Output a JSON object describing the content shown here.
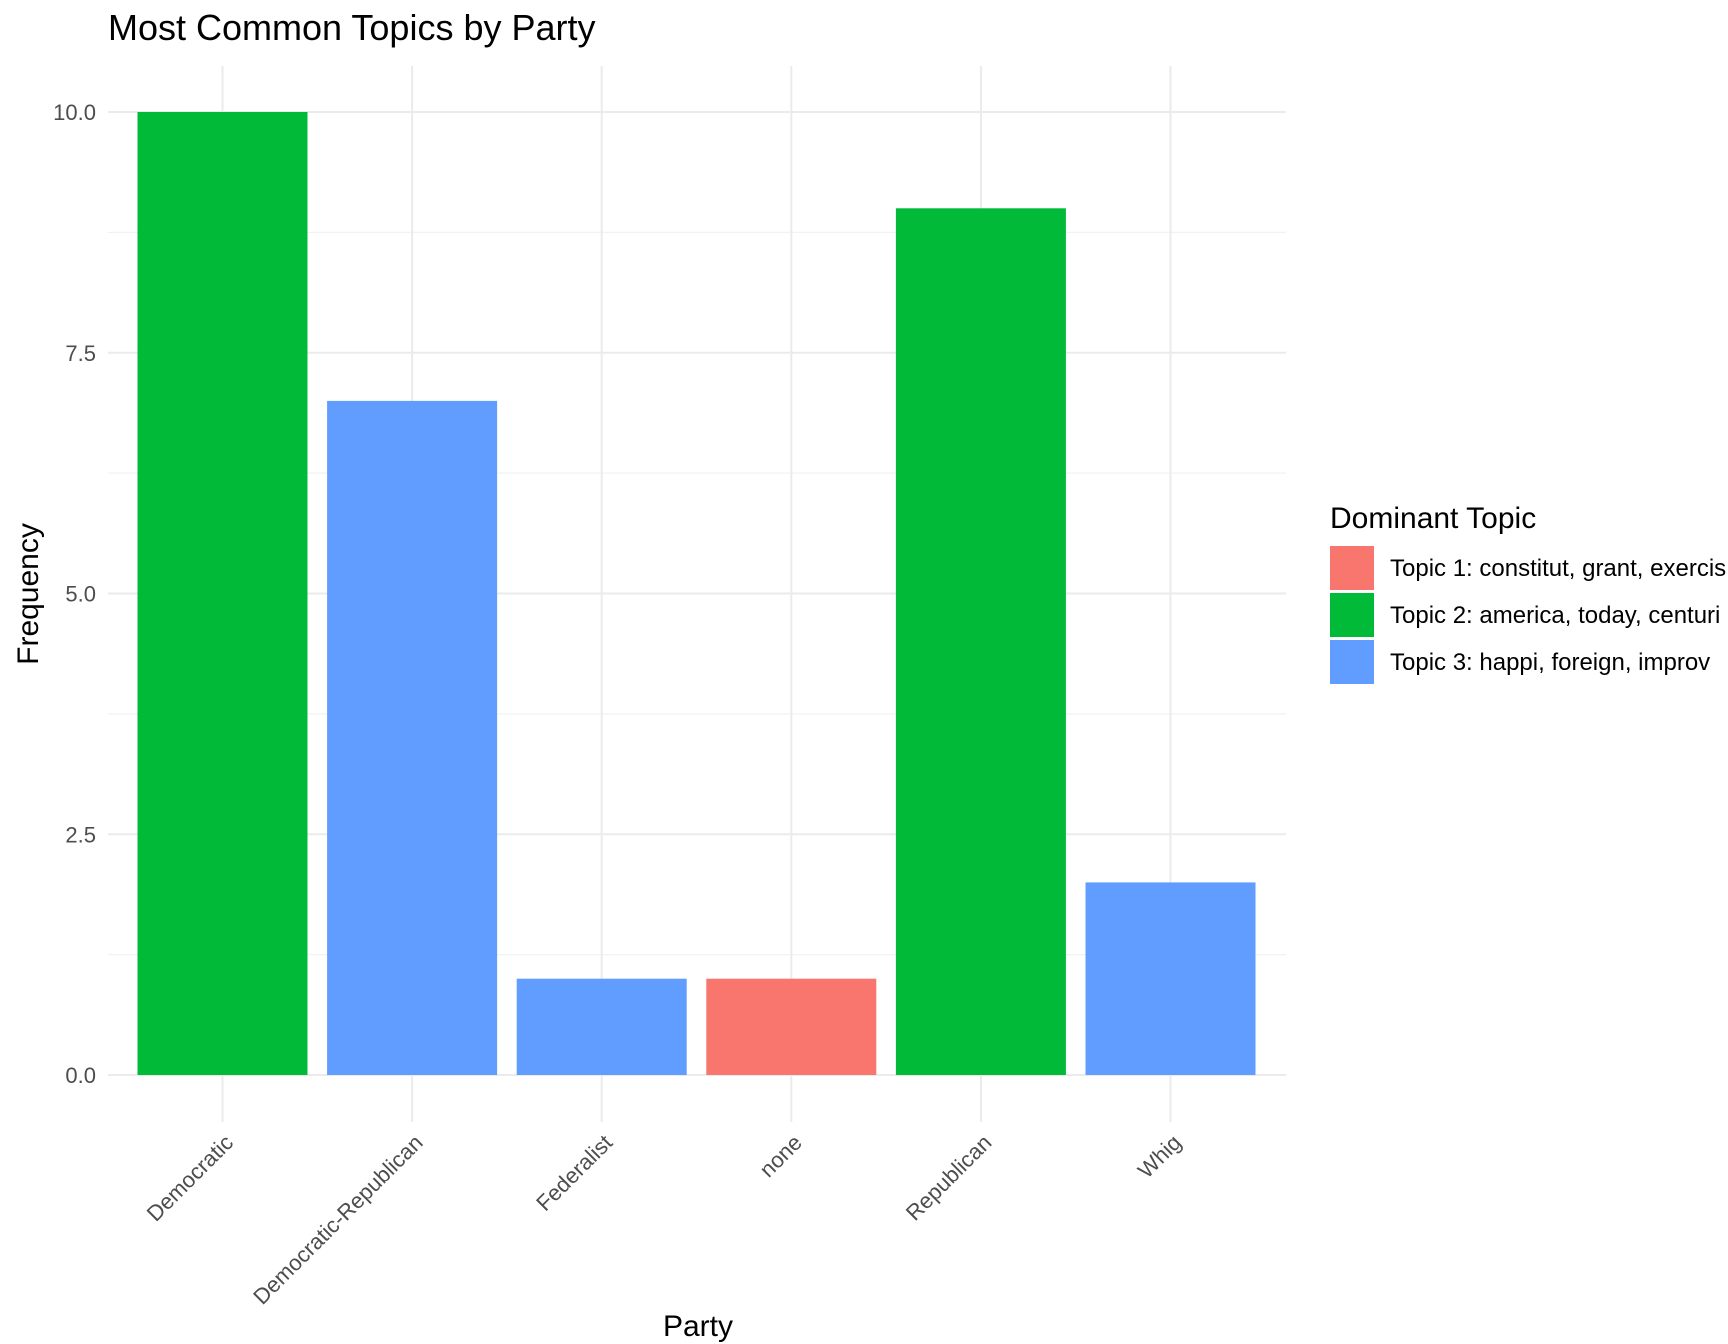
{
  "chart_data": {
    "type": "bar",
    "title": "Most Common Topics by Party",
    "xlabel": "Party",
    "ylabel": "Frequency",
    "categories": [
      "Democratic",
      "Democratic-Republican",
      "Federalist",
      "none",
      "Republican",
      "Whig"
    ],
    "values": [
      10,
      7,
      1,
      1,
      9,
      2
    ],
    "bar_topics": [
      "Topic 2: america, today, centuri",
      "Topic 3: happi, foreign, improv",
      "Topic 3: happi, foreign, improv",
      "Topic 1: constitut, grant, exercis",
      "Topic 2: america, today, centuri",
      "Topic 3: happi, foreign, improv"
    ],
    "ylim": [
      0,
      10.5
    ],
    "yticks": [
      "0.0",
      "2.5",
      "5.0",
      "7.5",
      "10.0"
    ],
    "ytick_values": [
      0,
      2.5,
      5,
      7.5,
      10
    ],
    "grid": true,
    "legend": {
      "title": "Dominant Topic",
      "placement": "right",
      "entries": [
        {
          "label": "Topic 1: constitut, grant, exercis",
          "color": "#F8766D"
        },
        {
          "label": "Topic 2: america, today, centuri",
          "color": "#00BA38"
        },
        {
          "label": "Topic 3: happi, foreign, improv",
          "color": "#619CFF"
        }
      ]
    }
  }
}
